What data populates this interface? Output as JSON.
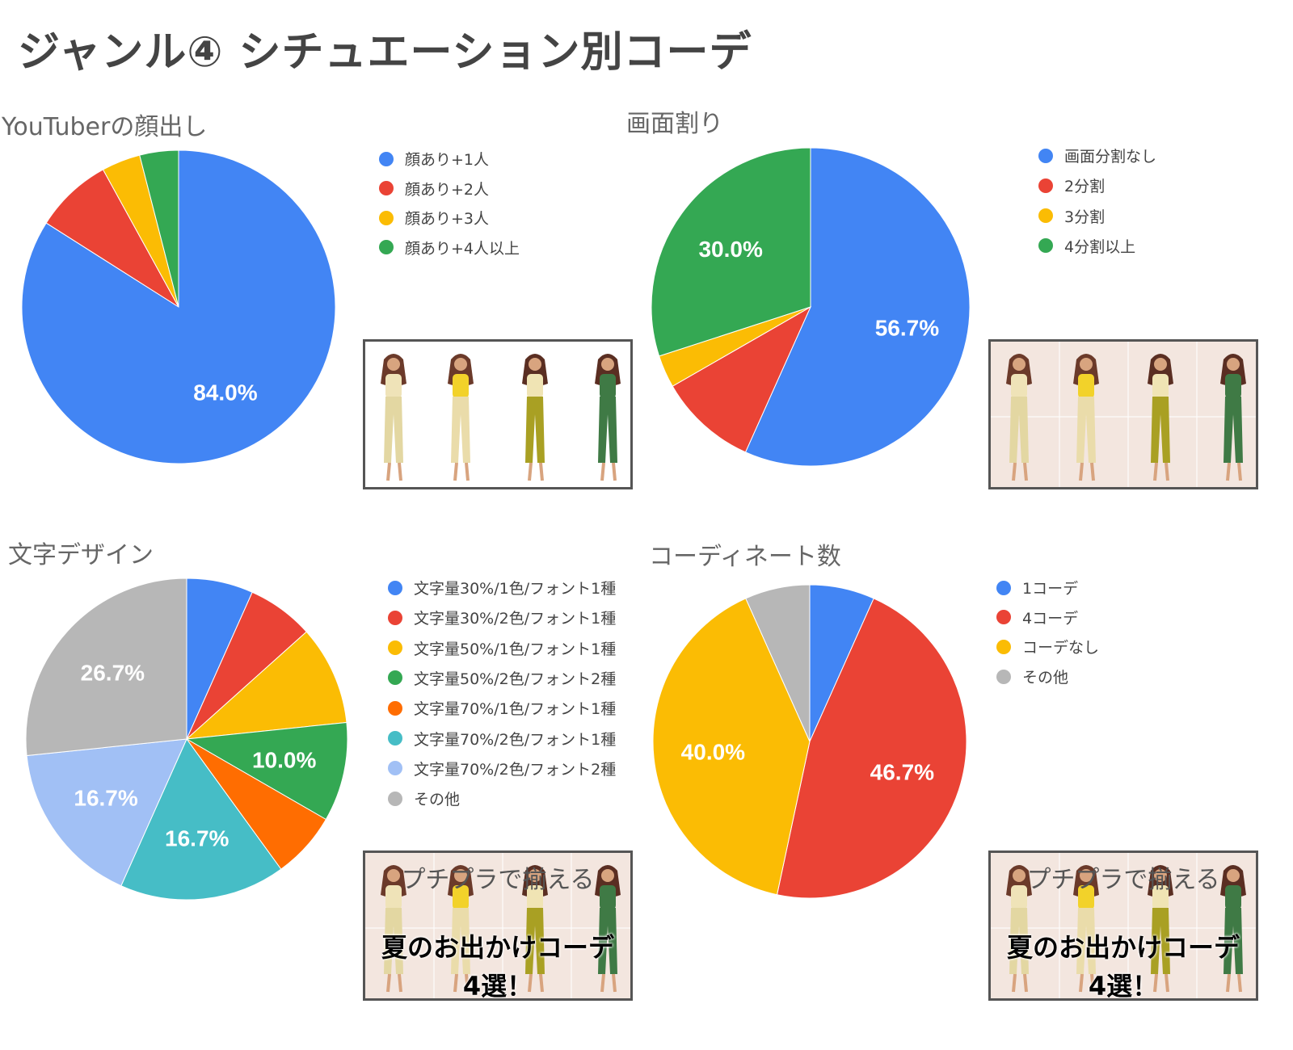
{
  "title": "ジャンル④ シチュエーション別コーデ",
  "chart_data": [
    {
      "type": "pie",
      "title": "YouTuberの顔出し",
      "categories": [
        "顔あり+1人",
        "顔あり+2人",
        "顔あり+3人",
        "顔あり+4人以上"
      ],
      "values": [
        84.0,
        8.0,
        4.0,
        4.0
      ],
      "colors": [
        "#4285f4",
        "#ea4335",
        "#fbbc04",
        "#34a853"
      ],
      "slice_labels": [
        "84.0%",
        "",
        "",
        ""
      ],
      "legend": "right"
    },
    {
      "type": "pie",
      "title": "画面割り",
      "categories": [
        "画面分割なし",
        "2分割",
        "3分割",
        "4分割以上"
      ],
      "values": [
        56.7,
        10.0,
        3.3,
        30.0
      ],
      "colors": [
        "#4285f4",
        "#ea4335",
        "#fbbc04",
        "#34a853"
      ],
      "slice_labels": [
        "56.7%",
        "",
        "",
        "30.0%"
      ],
      "legend": "right"
    },
    {
      "type": "pie",
      "title": "文字デザイン",
      "categories": [
        "文字量30%/1色/フォント1種",
        "文字量30%/2色/フォント1種",
        "文字量50%/1色/フォント1種",
        "文字量50%/2色/フォント2種",
        "文字量70%/1色/フォント1種",
        "文字量70%/2色/フォント1種",
        "文字量70%/2色/フォント2種",
        "その他"
      ],
      "values": [
        6.7,
        6.7,
        10.0,
        10.0,
        6.7,
        16.7,
        16.7,
        26.7
      ],
      "colors": [
        "#4285f4",
        "#ea4335",
        "#fbbc04",
        "#34a853",
        "#ff6d01",
        "#46bdc6",
        "#a1c0f5",
        "#b7b7b7"
      ],
      "slice_labels": [
        "",
        "",
        "",
        "10.0%",
        "",
        "16.7%",
        "16.7%",
        "26.7%"
      ],
      "legend": "right"
    },
    {
      "type": "pie",
      "title": "コーディネート数",
      "categories": [
        "1コーデ",
        "4コーデ",
        "コーデなし",
        "その他"
      ],
      "values": [
        6.7,
        46.7,
        40.0,
        6.7
      ],
      "colors": [
        "#4285f4",
        "#ea4335",
        "#fbbc04",
        "#b7b7b7"
      ],
      "slice_labels": [
        "",
        "46.7%",
        "40.0%",
        ""
      ],
      "legend": "right"
    }
  ],
  "thumbnails": [
    {
      "background": "#ffffff",
      "top_text": "",
      "main_text": "",
      "sub_text": ""
    },
    {
      "background": "#f3e6df",
      "top_text": "",
      "main_text": "",
      "sub_text": ""
    },
    {
      "background": "#f3e6df",
      "top_text": "プチプラで揃える",
      "main_text": "夏のお出かけコーデ",
      "sub_text": "4選！"
    },
    {
      "background": "#f3e6df",
      "top_text": "プチプラで揃える",
      "main_text": "夏のお出かけコーデ",
      "sub_text": "4選！"
    }
  ]
}
